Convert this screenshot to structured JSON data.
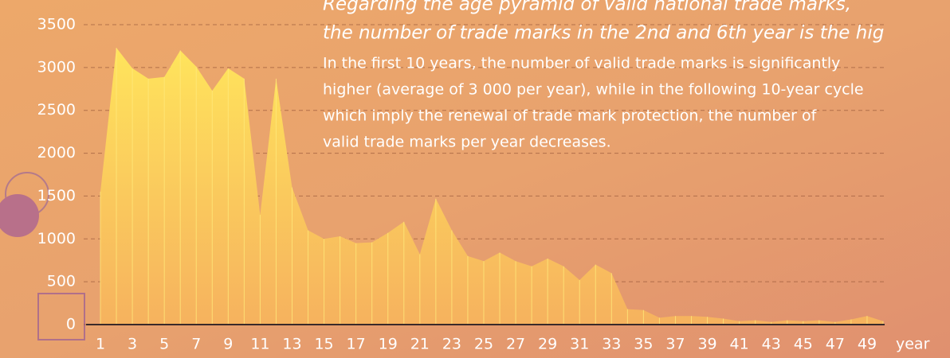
{
  "chart_data": {
    "type": "area",
    "title": [
      "Regarding the age pyramid of valid national trade marks,",
      "the number of trade marks in the 2nd and 6th year is the hig"
    ],
    "annotation": [
      "In the first 10 years, the number of valid trade marks is significantly",
      "higher (average of 3 000 per year), while in the following 10-year cycle",
      "which imply the renewal of trade mark protection, the number of",
      "valid trade marks per year decreases."
    ],
    "x_label": "year",
    "x": [
      1,
      2,
      3,
      4,
      5,
      6,
      7,
      8,
      9,
      10,
      11,
      12,
      13,
      14,
      15,
      16,
      17,
      18,
      19,
      20,
      21,
      22,
      23,
      24,
      25,
      26,
      27,
      28,
      29,
      30,
      31,
      32,
      33,
      34,
      35,
      36,
      37,
      38,
      39,
      40,
      41,
      42,
      43,
      44,
      45,
      46,
      47,
      48,
      49,
      50
    ],
    "values": [
      1550,
      3230,
      2990,
      2870,
      2890,
      3200,
      3010,
      2730,
      2990,
      2870,
      1280,
      2870,
      1600,
      1100,
      1000,
      1030,
      950,
      960,
      1070,
      1200,
      820,
      1470,
      1100,
      800,
      740,
      840,
      740,
      680,
      770,
      680,
      520,
      700,
      600,
      180,
      170,
      80,
      100,
      100,
      90,
      70,
      40,
      50,
      30,
      50,
      40,
      50,
      30,
      60,
      100,
      40
    ],
    "xlim": [
      1,
      50
    ],
    "xticks": [
      1,
      3,
      5,
      7,
      9,
      11,
      13,
      15,
      17,
      19,
      21,
      23,
      25,
      27,
      29,
      31,
      33,
      35,
      37,
      39,
      41,
      43,
      45,
      47,
      49
    ],
    "ylim": [
      0,
      3500
    ],
    "yticks": [
      0,
      500,
      1000,
      1500,
      2000,
      2500,
      3000,
      3500
    ],
    "grid": true,
    "color": "#ffe45c"
  }
}
